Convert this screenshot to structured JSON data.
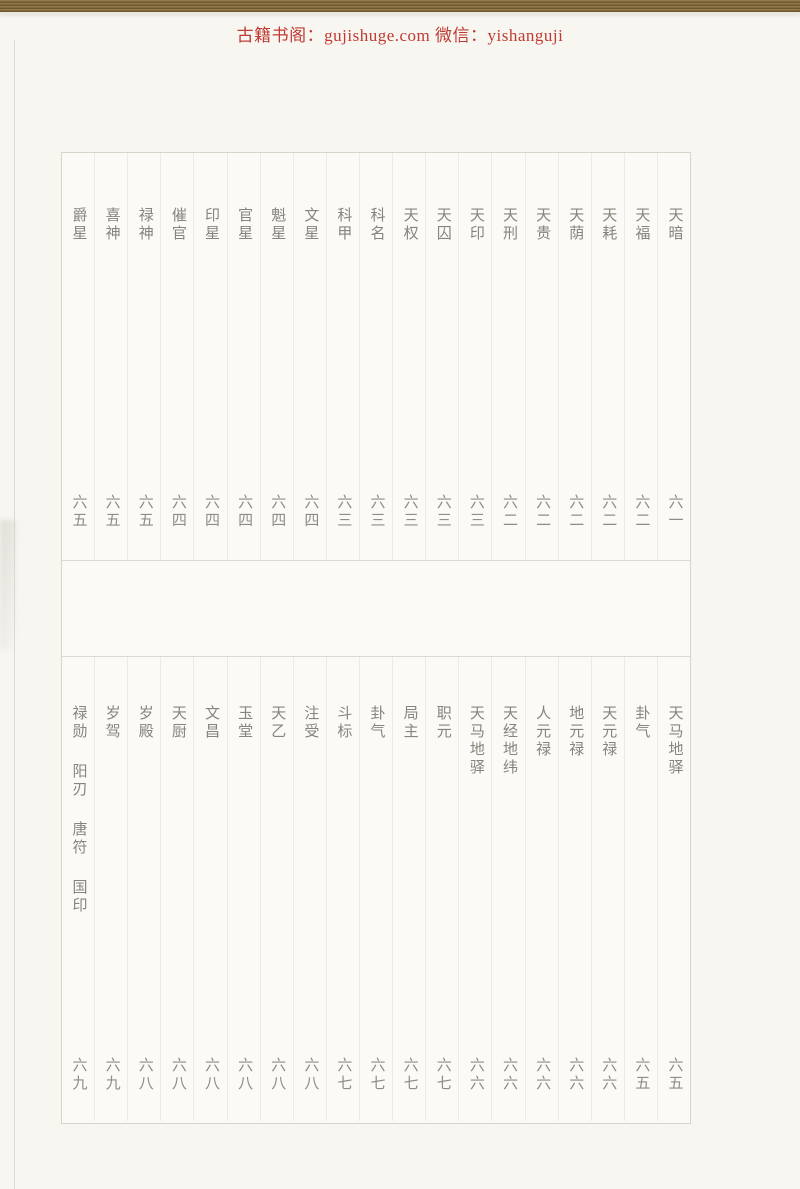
{
  "header": {
    "full_text": "古籍书阁：gujishuge.com 微信：yishanguji",
    "site_label": "古籍书阁：",
    "site_url": "gujishuge.com",
    "wechat_label": "微信：",
    "wechat_id": "yishanguji"
  },
  "colors": {
    "watermark_red": "#c03a33",
    "top_bar_gold": "#94794b",
    "top_bar_gold_dark": "#6e572f",
    "page_background": "#f7f6f1",
    "table_line": "#dcd9d0",
    "text_gray": "#87847b"
  },
  "table": {
    "section_top": {
      "columns": [
        {
          "names": [
            "爵星"
          ],
          "page": "六五"
        },
        {
          "names": [
            "喜神"
          ],
          "page": "六五"
        },
        {
          "names": [
            "禄神"
          ],
          "page": "六五"
        },
        {
          "names": [
            "催官"
          ],
          "page": "六四"
        },
        {
          "names": [
            "印星"
          ],
          "page": "六四"
        },
        {
          "names": [
            "官星"
          ],
          "page": "六四"
        },
        {
          "names": [
            "魁星"
          ],
          "page": "六四"
        },
        {
          "names": [
            "文星"
          ],
          "page": "六四"
        },
        {
          "names": [
            "科甲"
          ],
          "page": "六三"
        },
        {
          "names": [
            "科名"
          ],
          "page": "六三"
        },
        {
          "names": [
            "天权"
          ],
          "page": "六三"
        },
        {
          "names": [
            "天囚"
          ],
          "page": "六三"
        },
        {
          "names": [
            "天印"
          ],
          "page": "六三"
        },
        {
          "names": [
            "天刑"
          ],
          "page": "六二"
        },
        {
          "names": [
            "天贵"
          ],
          "page": "六二"
        },
        {
          "names": [
            "天荫"
          ],
          "page": "六二"
        },
        {
          "names": [
            "天耗"
          ],
          "page": "六二"
        },
        {
          "names": [
            "天福"
          ],
          "page": "六二"
        },
        {
          "names": [
            "天暗"
          ],
          "page": "六一"
        }
      ]
    },
    "section_bottom": {
      "columns": [
        {
          "names": [
            "禄勋",
            "阳刃",
            "唐符",
            "国印"
          ],
          "page": "六九"
        },
        {
          "names": [
            "岁驾"
          ],
          "page": "六九"
        },
        {
          "names": [
            "岁殿"
          ],
          "page": "六八"
        },
        {
          "names": [
            "天厨"
          ],
          "page": "六八"
        },
        {
          "names": [
            "文昌"
          ],
          "page": "六八"
        },
        {
          "names": [
            "玉堂"
          ],
          "page": "六八"
        },
        {
          "names": [
            "天乙"
          ],
          "page": "六八"
        },
        {
          "names": [
            "注受"
          ],
          "page": "六八"
        },
        {
          "names": [
            "斗标"
          ],
          "page": "六七"
        },
        {
          "names": [
            "卦气"
          ],
          "page": "六七"
        },
        {
          "names": [
            "局主"
          ],
          "page": "六七"
        },
        {
          "names": [
            "职元"
          ],
          "page": "六七"
        },
        {
          "names": [
            "天马地驿"
          ],
          "page": "六六"
        },
        {
          "names": [
            "天经地纬"
          ],
          "page": "六六"
        },
        {
          "names": [
            "人元禄"
          ],
          "page": "六六"
        },
        {
          "names": [
            "地元禄"
          ],
          "page": "六六"
        },
        {
          "names": [
            "天元禄"
          ],
          "page": "六六"
        },
        {
          "names": [
            "卦气"
          ],
          "page": "六五"
        },
        {
          "names": [
            "天马地驿"
          ],
          "page": "六五"
        }
      ]
    }
  }
}
